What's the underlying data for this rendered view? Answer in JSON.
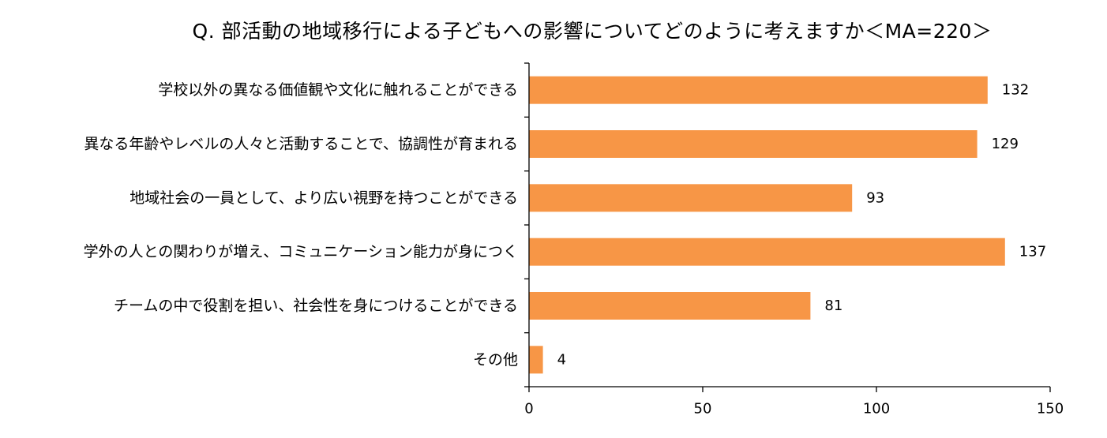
{
  "chart_data": {
    "type": "bar",
    "orientation": "horizontal",
    "title": "Q. 部活動の地域移行による子どもへの影響についてどのように考えますか＜MA=220＞",
    "categories": [
      "学校以外の異なる価値観や文化に触れることができる",
      "異なる年齢やレベルの人々と活動することで、協調性が育まれる",
      "地域社会の一員として、より広い視野を持つことができる",
      "学外の人との関わりが増え、コミュニケーション能力が身につく",
      "チームの中で役割を担い、社会性を身につけることができる",
      "その他"
    ],
    "values": [
      132,
      129,
      93,
      137,
      81,
      4
    ],
    "xlim": [
      0,
      150
    ],
    "xticks": [
      0,
      50,
      100,
      150
    ],
    "grid": false,
    "bar_color": "#F79646",
    "axis_color": "#000000"
  }
}
